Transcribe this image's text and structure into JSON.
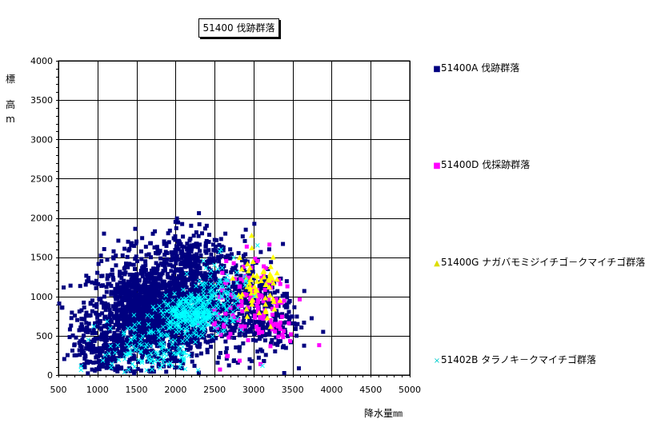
{
  "chart_data": {
    "type": "scatter",
    "title": "51400 伐跡群落",
    "xlabel": "降水量㎜",
    "ylabel_chars": [
      "標",
      "高",
      "m"
    ],
    "xlim": [
      500,
      5000
    ],
    "ylim": [
      0,
      4000
    ],
    "xticks": [
      "500",
      "1000",
      "1500",
      "2000",
      "2500",
      "3000",
      "3500",
      "4000",
      "4500",
      "5000"
    ],
    "yticks": [
      "0",
      "500",
      "1000",
      "1500",
      "2000",
      "2500",
      "3000",
      "3500",
      "4000"
    ],
    "grid": true,
    "legend_position": "right",
    "series": [
      {
        "name": "51400A 伐跡群落",
        "marker": "square",
        "color": "#000080",
        "clusters": [
          {
            "cx": 1650,
            "cy": 780,
            "sx": 380,
            "sy": 330,
            "n": 1400
          },
          {
            "cx": 2200,
            "cy": 1000,
            "sx": 330,
            "sy": 380,
            "n": 600
          },
          {
            "cx": 2900,
            "cy": 850,
            "sx": 300,
            "sy": 300,
            "n": 350
          },
          {
            "cx": 1100,
            "cy": 350,
            "sx": 220,
            "sy": 200,
            "n": 200
          },
          {
            "cx": 2150,
            "cy": 1550,
            "sx": 300,
            "sy": 180,
            "n": 120
          },
          {
            "cx": 3300,
            "cy": 650,
            "sx": 150,
            "sy": 200,
            "n": 50
          }
        ],
        "points": [
          [
            2000,
            1950
          ],
          [
            2200,
            1900
          ],
          [
            2300,
            2060
          ],
          [
            2400,
            1900
          ],
          [
            1500,
            1700
          ],
          [
            1050,
            1450
          ],
          [
            850,
            1150
          ],
          [
            830,
            860
          ],
          [
            2700,
            1600
          ],
          [
            3200,
            1600
          ],
          [
            3550,
            500
          ],
          [
            2900,
            1850
          ]
        ]
      },
      {
        "name": "51400D 伐採跡群落",
        "marker": "square",
        "color": "#ff00ff",
        "clusters": [
          {
            "cx": 3000,
            "cy": 900,
            "sx": 250,
            "sy": 280,
            "n": 110
          },
          {
            "cx": 3350,
            "cy": 580,
            "sx": 80,
            "sy": 120,
            "n": 20
          }
        ],
        "points": [
          [
            3840,
            380
          ],
          [
            2600,
            1300
          ],
          [
            2650,
            1450
          ],
          [
            2570,
            70
          ],
          [
            3050,
            1450
          ]
        ]
      },
      {
        "name": "51400G ナガバモミジイチゴ－クマイチゴ群落",
        "marker": "triangle",
        "color": "#ffff00",
        "clusters": [
          {
            "cx": 3050,
            "cy": 1050,
            "sx": 180,
            "sy": 220,
            "n": 60
          }
        ],
        "points": [
          [
            3250,
            1500
          ],
          [
            3300,
            1300
          ],
          [
            2850,
            1350
          ]
        ]
      },
      {
        "name": "51402B タラノキ－クマイチゴ群落",
        "marker": "x",
        "color": "#00ffff",
        "clusters": [
          {
            "cx": 2200,
            "cy": 780,
            "sx": 200,
            "sy": 120,
            "n": 320
          },
          {
            "cx": 1700,
            "cy": 300,
            "sx": 330,
            "sy": 200,
            "n": 140
          },
          {
            "cx": 2550,
            "cy": 1050,
            "sx": 180,
            "sy": 200,
            "n": 80
          }
        ],
        "points": [
          [
            3050,
            1650
          ],
          [
            2500,
            1400
          ]
        ]
      }
    ]
  }
}
